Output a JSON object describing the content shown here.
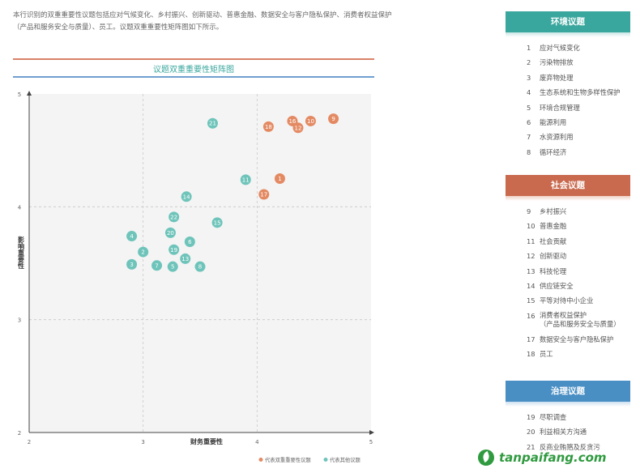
{
  "intro": "本行识别的双重重要性议题包括应对气候变化、乡村振兴、创新驱动、普惠金融、数据安全与客户隐私保护、消费者权益保护（产品和服务安全与质量）、员工。议题双重重要性矩阵图如下所示。",
  "chart_data": {
    "type": "scatter",
    "title": "议题双重重要性矩阵图",
    "xlabel": "财务重要性",
    "ylabel": "影响重要性",
    "xlim": [
      2,
      5
    ],
    "ylim": [
      2,
      5
    ],
    "xticks": [
      "2",
      "3",
      "4",
      "5"
    ],
    "yticks": [
      "2",
      "3",
      "4",
      "5"
    ],
    "grid": "dashed",
    "legend_position": "bottom-right",
    "series": [
      {
        "name": "代表双重重要性议题",
        "color": "#e48a63",
        "points": [
          {
            "label": "9",
            "x": 4.67,
            "y": 4.78
          },
          {
            "label": "10",
            "x": 4.47,
            "y": 4.76
          },
          {
            "label": "16",
            "x": 4.31,
            "y": 4.76
          },
          {
            "label": "12",
            "x": 4.36,
            "y": 4.7
          },
          {
            "label": "18",
            "x": 4.1,
            "y": 4.71
          },
          {
            "label": "1",
            "x": 4.2,
            "y": 4.25
          },
          {
            "label": "17",
            "x": 4.06,
            "y": 4.11
          }
        ]
      },
      {
        "name": "代表其他议题",
        "color": "#6ec4ba",
        "points": [
          {
            "label": "21",
            "x": 3.61,
            "y": 4.74
          },
          {
            "label": "11",
            "x": 3.9,
            "y": 4.24
          },
          {
            "label": "14",
            "x": 3.38,
            "y": 4.09
          },
          {
            "label": "22",
            "x": 3.27,
            "y": 3.91
          },
          {
            "label": "15",
            "x": 3.65,
            "y": 3.86
          },
          {
            "label": "20",
            "x": 3.24,
            "y": 3.77
          },
          {
            "label": "4",
            "x": 2.9,
            "y": 3.74
          },
          {
            "label": "6",
            "x": 3.41,
            "y": 3.69
          },
          {
            "label": "2",
            "x": 3.0,
            "y": 3.6
          },
          {
            "label": "19",
            "x": 3.27,
            "y": 3.62
          },
          {
            "label": "13",
            "x": 3.37,
            "y": 3.54
          },
          {
            "label": "3",
            "x": 2.9,
            "y": 3.49
          },
          {
            "label": "7",
            "x": 3.12,
            "y": 3.48
          },
          {
            "label": "5",
            "x": 3.26,
            "y": 3.47
          },
          {
            "label": "8",
            "x": 3.5,
            "y": 3.47
          }
        ]
      }
    ]
  },
  "sidebar": {
    "environment": {
      "title": "环境议题",
      "color": "#3aa79e",
      "items": [
        {
          "num": "1",
          "label": "应对气候变化"
        },
        {
          "num": "2",
          "label": "污染物排放"
        },
        {
          "num": "3",
          "label": "废弃物处理"
        },
        {
          "num": "4",
          "label": "生态系统和生物多样性保护"
        },
        {
          "num": "5",
          "label": "环境合规管理"
        },
        {
          "num": "6",
          "label": "能源利用"
        },
        {
          "num": "7",
          "label": "水资源利用"
        },
        {
          "num": "8",
          "label": "循环经济"
        }
      ]
    },
    "social": {
      "title": "社会议题",
      "color": "#c96a4e",
      "items": [
        {
          "num": "9",
          "label": "乡村振兴"
        },
        {
          "num": "10",
          "label": "普惠金融"
        },
        {
          "num": "11",
          "label": "社会贡献"
        },
        {
          "num": "12",
          "label": "创新驱动"
        },
        {
          "num": "13",
          "label": "科技伦理"
        },
        {
          "num": "14",
          "label": "供应链安全"
        },
        {
          "num": "15",
          "label": "平等对待中小企业"
        },
        {
          "num": "16",
          "label": "消费者权益保护\n（产品和服务安全与质量）"
        },
        {
          "num": "17",
          "label": "数据安全与客户隐私保护"
        },
        {
          "num": "18",
          "label": "员工"
        }
      ]
    },
    "governance": {
      "title": "治理议题",
      "color": "#4a8fc4",
      "items": [
        {
          "num": "19",
          "label": "尽职调查"
        },
        {
          "num": "20",
          "label": "利益相关方沟通"
        },
        {
          "num": "21",
          "label": "反商业贿赂及反贪污"
        }
      ]
    }
  },
  "watermark": "tanpaifang.com"
}
